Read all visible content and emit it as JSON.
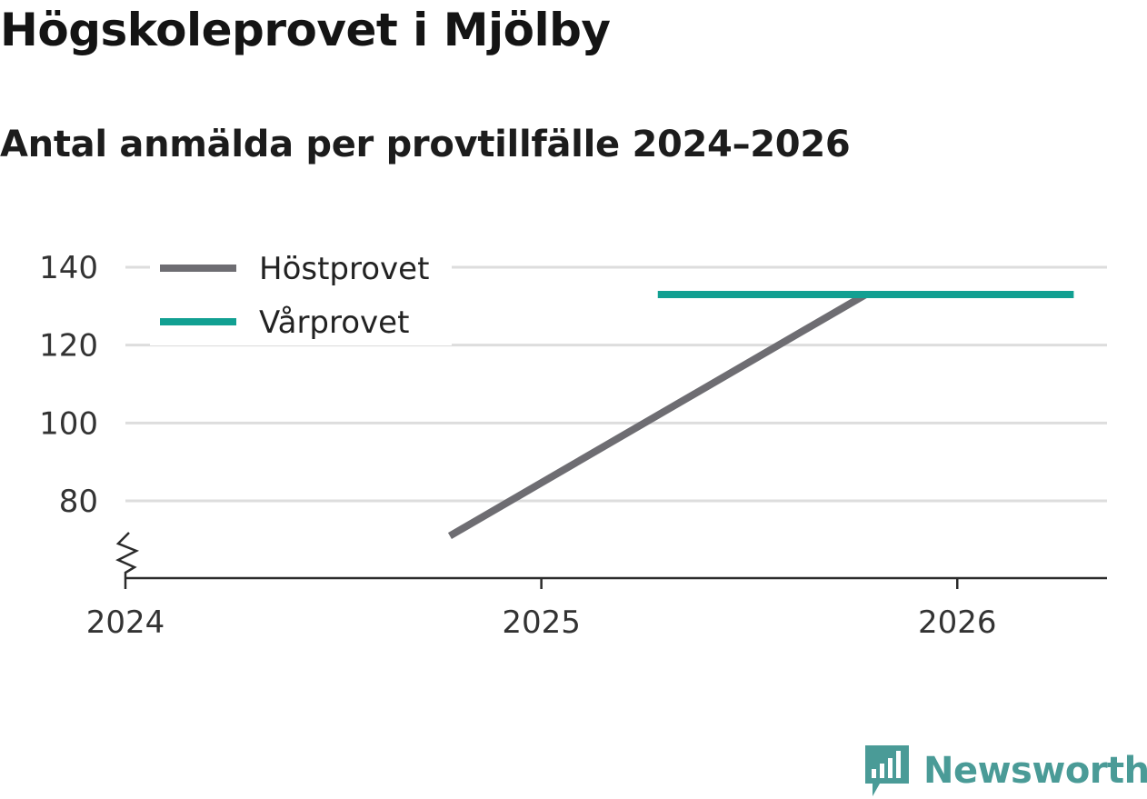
{
  "header": {
    "title": "Högskoleprovet i Mjölby",
    "subtitle": "Antal anmälda per provtillfälle 2024–2026"
  },
  "brand": {
    "name": "Newsworthy",
    "icon": "newsworthy-logo-icon",
    "color": "#4a9b97"
  },
  "chart_data": {
    "type": "line",
    "title": "Högskoleprovet i Mjölby",
    "subtitle": "Antal anmälda per provtillfälle 2024–2026",
    "xlabel": "",
    "ylabel": "",
    "xlim": [
      2024.0,
      2026.36
    ],
    "ylim": [
      60,
      140
    ],
    "x_ticks": [
      2024,
      2025,
      2026
    ],
    "y_ticks": [
      80,
      100,
      120,
      140
    ],
    "x_tick_labels": [
      "2024",
      "2025",
      "2026"
    ],
    "y_tick_labels": [
      "80",
      "100",
      "120",
      "140"
    ],
    "grid": true,
    "axis_break": true,
    "legend_position": "top-left",
    "series": [
      {
        "name": "Höstprovet",
        "color": "#6e6d72",
        "points": [
          {
            "x": 2024.78,
            "y": 71
          },
          {
            "x": 2025.78,
            "y": 133
          }
        ]
      },
      {
        "name": "Vårprovet",
        "color": "#12a092",
        "points": [
          {
            "x": 2025.28,
            "y": 133
          },
          {
            "x": 2026.28,
            "y": 133
          }
        ]
      }
    ]
  }
}
